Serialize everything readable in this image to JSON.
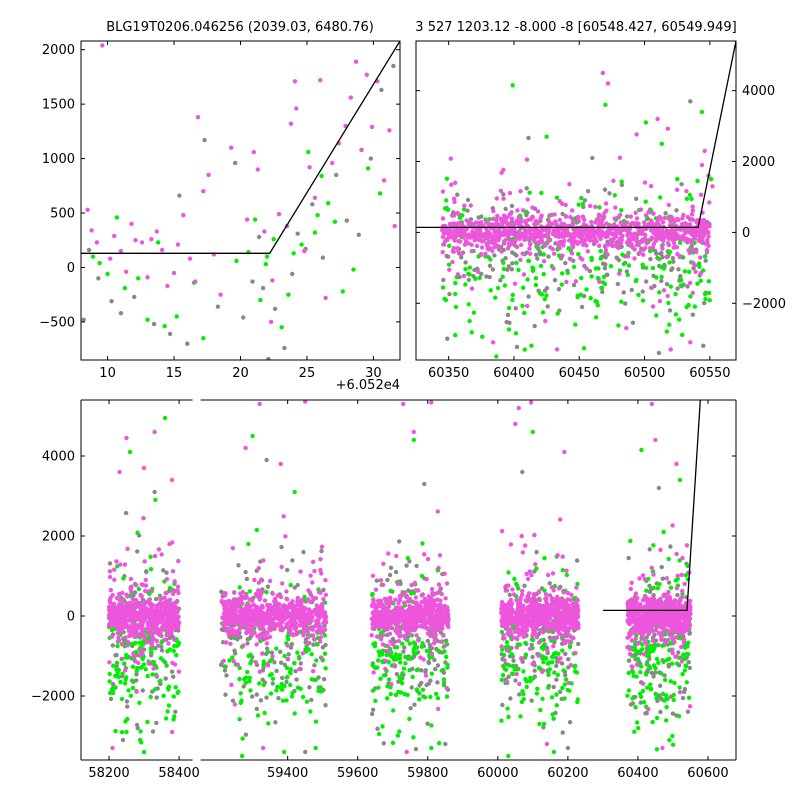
{
  "colors": {
    "magenta": "#ee55dd",
    "green": "#00ee00",
    "gray": "#888888",
    "model": "#000000"
  },
  "chart_data": [
    {
      "id": "top-left",
      "type": "scatter",
      "title": "BLG19T0206.046256 (2039.03, 6480.76)",
      "xlim": [
        8,
        32
      ],
      "ylim": [
        -850,
        2080
      ],
      "xticks": [
        10,
        15,
        20,
        25,
        30
      ],
      "yticks": [
        -500,
        0,
        500,
        1000,
        1500,
        2000
      ],
      "x_offset_label": "+6.052e4",
      "model_line": {
        "x": [
          8,
          22.2,
          32
        ],
        "y": [
          130,
          130,
          2080
        ]
      },
      "series": [
        {
          "color": "magenta",
          "points": [
            [
              8.5,
              530
            ],
            [
              8.8,
              340
            ],
            [
              9.2,
              230
            ],
            [
              9.6,
              2040
            ],
            [
              10.2,
              80
            ],
            [
              10.5,
              290
            ],
            [
              11.0,
              150
            ],
            [
              11.4,
              -40
            ],
            [
              11.8,
              400
            ],
            [
              12.1,
              250
            ],
            [
              12.6,
              230
            ],
            [
              13.0,
              -90
            ],
            [
              13.3,
              260
            ],
            [
              13.7,
              330
            ],
            [
              14.1,
              160
            ],
            [
              14.5,
              -170
            ],
            [
              15.0,
              -50
            ],
            [
              15.3,
              210
            ],
            [
              15.7,
              480
            ],
            [
              16.2,
              80
            ],
            [
              16.6,
              -130
            ],
            [
              16.8,
              1380
            ],
            [
              17.2,
              700
            ],
            [
              17.6,
              850
            ],
            [
              18.0,
              120
            ],
            [
              18.5,
              -250
            ],
            [
              19.3,
              1100
            ],
            [
              20.5,
              440
            ],
            [
              21.0,
              1060
            ],
            [
              21.3,
              900
            ],
            [
              21.8,
              330
            ],
            [
              22.4,
              -120
            ],
            [
              22.9,
              490
            ],
            [
              23.5,
              380
            ],
            [
              24.1,
              1710
            ],
            [
              24.8,
              150
            ],
            [
              25.2,
              920
            ],
            [
              25.6,
              640
            ],
            [
              26.0,
              1720
            ],
            [
              26.4,
              -280
            ],
            [
              26.9,
              960
            ],
            [
              27.4,
              1140
            ],
            [
              27.9,
              1300
            ],
            [
              28.3,
              1560
            ],
            [
              28.7,
              1890
            ],
            [
              29.1,
              1080
            ],
            [
              29.5,
              1770
            ],
            [
              29.9,
              1290
            ],
            [
              30.3,
              1710
            ],
            [
              30.8,
              800
            ],
            [
              31.2,
              1260
            ],
            [
              31.6,
              380
            ],
            [
              23.8,
              1320
            ],
            [
              24.2,
              1460
            ],
            [
              22.3,
              -500
            ]
          ]
        },
        {
          "color": "green",
          "points": [
            [
              8.9,
              100
            ],
            [
              9.4,
              40
            ],
            [
              10.0,
              -60
            ],
            [
              10.7,
              460
            ],
            [
              11.3,
              -190
            ],
            [
              12.3,
              -100
            ],
            [
              13.0,
              -480
            ],
            [
              13.8,
              230
            ],
            [
              14.3,
              -540
            ],
            [
              15.2,
              -450
            ],
            [
              16.5,
              -140
            ],
            [
              17.2,
              -650
            ],
            [
              19.7,
              60
            ],
            [
              20.6,
              140
            ],
            [
              21.1,
              440
            ],
            [
              21.5,
              -300
            ],
            [
              22.0,
              100
            ],
            [
              22.5,
              260
            ],
            [
              23.1,
              -550
            ],
            [
              23.6,
              -250
            ],
            [
              24.0,
              130
            ],
            [
              24.6,
              210
            ],
            [
              25.1,
              1060
            ],
            [
              25.6,
              320
            ],
            [
              26.1,
              840
            ],
            [
              26.6,
              590
            ],
            [
              27.1,
              420
            ],
            [
              27.7,
              -220
            ],
            [
              28.5,
              -20
            ],
            [
              29.1,
              1080
            ],
            [
              29.6,
              910
            ],
            [
              30.5,
              680
            ],
            [
              21.9,
              30
            ],
            [
              25.8,
              480
            ]
          ]
        },
        {
          "color": "gray",
          "points": [
            [
              8.2,
              -480
            ],
            [
              8.6,
              160
            ],
            [
              9.3,
              -100
            ],
            [
              10.3,
              -310
            ],
            [
              11.0,
              -420
            ],
            [
              12.0,
              -270
            ],
            [
              13.5,
              -520
            ],
            [
              14.7,
              -610
            ],
            [
              15.4,
              660
            ],
            [
              16.0,
              -700
            ],
            [
              17.3,
              1170
            ],
            [
              18.3,
              -360
            ],
            [
              19.6,
              960
            ],
            [
              20.2,
              -460
            ],
            [
              20.9,
              -130
            ],
            [
              21.4,
              280
            ],
            [
              22.1,
              -840
            ],
            [
              22.6,
              -380
            ],
            [
              23.3,
              -740
            ],
            [
              24.3,
              310
            ],
            [
              24.9,
              170
            ],
            [
              25.4,
              580
            ],
            [
              26.2,
              90
            ],
            [
              27.2,
              850
            ],
            [
              28.0,
              430
            ],
            [
              28.9,
              300
            ],
            [
              29.8,
              1000
            ],
            [
              30.6,
              1630
            ],
            [
              31.5,
              1850
            ],
            [
              21.7,
              -190
            ],
            [
              23.9,
              -60
            ]
          ]
        }
      ]
    },
    {
      "id": "top-right",
      "type": "scatter",
      "title": "3 527 1203.12 -8.000 -8 [60548.427, 60549.949]",
      "xlim": [
        60325,
        60570
      ],
      "ylim": [
        -3600,
        5400
      ],
      "xticks": [
        60350,
        60400,
        60450,
        60500,
        60550
      ],
      "yticks": [
        -2000,
        0,
        2000,
        4000
      ],
      "yaxis_side": "right",
      "model_line": {
        "x": [
          60325,
          60541,
          60570
        ],
        "y": [
          140,
          140,
          5400
        ]
      },
      "data_window": [
        60345,
        60550
      ],
      "outliers": [
        {
          "color": "magenta",
          "points": [
            [
              60468,
              4500
            ],
            [
              60472,
              4200
            ],
            [
              60510,
              3200
            ],
            [
              60546,
              2300
            ],
            [
              60544,
              1900
            ],
            [
              60549,
              1600
            ],
            [
              60520,
              -3300
            ],
            [
              60384,
              -3100
            ],
            [
              60424,
              -2500
            ],
            [
              60486,
              -2700
            ],
            [
              60552,
              1300
            ],
            [
              60535,
              -3100
            ],
            [
              60355,
              1400
            ],
            [
              60433,
              -3300
            ]
          ]
        },
        {
          "color": "green",
          "points": [
            [
              60399,
              4150
            ],
            [
              60501,
              3100
            ],
            [
              60544,
              3400
            ],
            [
              60470,
              3600
            ],
            [
              60355,
              -2900
            ],
            [
              60425,
              2700
            ],
            [
              60366,
              -2500
            ],
            [
              60447,
              -2600
            ],
            [
              60517,
              -2800
            ],
            [
              60551,
              1500
            ]
          ]
        },
        {
          "color": "gray",
          "points": [
            [
              60535,
              3700
            ],
            [
              60349,
              -3000
            ],
            [
              60545,
              -3200
            ],
            [
              60511,
              -3400
            ],
            [
              60460,
              2100
            ]
          ]
        }
      ]
    },
    {
      "id": "bottom",
      "type": "scatter",
      "title": "",
      "xlim": [
        58120,
        60680
      ],
      "ylim": [
        -3600,
        5400
      ],
      "xticks": [
        58200,
        58400,
        59400,
        59600,
        59800,
        60000,
        60200,
        60400,
        60600
      ],
      "yticks": [
        -2000,
        0,
        2000,
        4000
      ],
      "axis_break": [
        58450,
        59140
      ],
      "model_line": {
        "x": [
          60300,
          60540,
          60578
        ],
        "y": [
          140,
          140,
          5400
        ]
      },
      "seasons": [
        [
          58200,
          58400
        ],
        [
          59210,
          59510
        ],
        [
          59640,
          59860
        ],
        [
          60010,
          60230
        ],
        [
          60370,
          60550
        ]
      ],
      "outliers": [
        {
          "color": "magenta",
          "points": [
            [
              58250,
              4450
            ],
            [
              58330,
              4600
            ],
            [
              58300,
              3700
            ],
            [
              58380,
              3400
            ],
            [
              58230,
              3600
            ],
            [
              59280,
              4200
            ],
            [
              59320,
              5300
            ],
            [
              59450,
              5360
            ],
            [
              59380,
              3800
            ],
            [
              59730,
              5300
            ],
            [
              59810,
              5340
            ],
            [
              59760,
              4600
            ],
            [
              60060,
              5200
            ],
            [
              60095,
              5340
            ],
            [
              60050,
              4800
            ],
            [
              60190,
              4100
            ],
            [
              60440,
              5300
            ],
            [
              60450,
              4400
            ],
            [
              60510,
              3800
            ],
            [
              58210,
              -3300
            ],
            [
              58380,
              -2900
            ],
            [
              59330,
              -3300
            ],
            [
              59740,
              -3400
            ],
            [
              60140,
              -3200
            ],
            [
              60470,
              -3300
            ]
          ]
        },
        {
          "color": "green",
          "points": [
            [
              58360,
              4950
            ],
            [
              58260,
              4100
            ],
            [
              59300,
              4500
            ],
            [
              59420,
              3100
            ],
            [
              59760,
              4400
            ],
            [
              60100,
              4600
            ],
            [
              60410,
              4150
            ],
            [
              60520,
              3400
            ],
            [
              58250,
              -2900
            ],
            [
              58300,
              -3400
            ],
            [
              59270,
              -3500
            ],
            [
              59390,
              -3400
            ],
            [
              59480,
              -3300
            ],
            [
              59810,
              -3300
            ],
            [
              60030,
              -3500
            ],
            [
              60160,
              -3400
            ],
            [
              60490,
              -3100
            ]
          ]
        },
        {
          "color": "gray",
          "points": [
            [
              58330,
              3100
            ],
            [
              59340,
              3900
            ],
            [
              59790,
              3300
            ],
            [
              60070,
              3600
            ],
            [
              60460,
              3200
            ],
            [
              58240,
              -3100
            ],
            [
              59450,
              -3400
            ],
            [
              59850,
              -3200
            ],
            [
              60200,
              -3300
            ]
          ]
        }
      ]
    }
  ]
}
